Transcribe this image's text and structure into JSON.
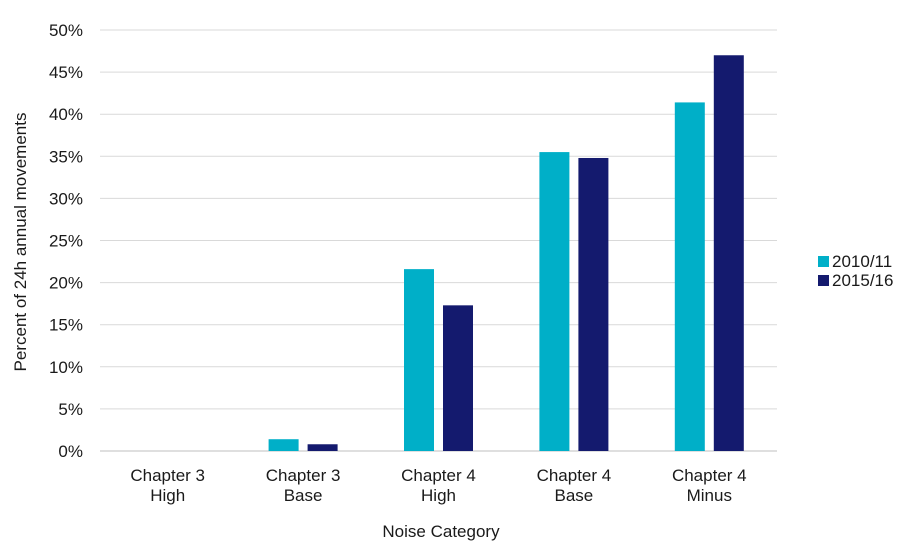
{
  "chart_data": {
    "type": "bar",
    "title": "",
    "xlabel": "Noise Category",
    "ylabel": "Percent of 24h annual movements",
    "categories": [
      [
        "Chapter 3",
        "High"
      ],
      [
        "Chapter 3",
        "Base"
      ],
      [
        "Chapter 4",
        "High"
      ],
      [
        "Chapter 4",
        "Base"
      ],
      [
        "Chapter 4",
        "Minus"
      ]
    ],
    "series": [
      {
        "name": "2010/11",
        "color": "#00afc8",
        "values": [
          0.0,
          1.4,
          21.6,
          35.5,
          41.4
        ]
      },
      {
        "name": "2015/16",
        "color": "#141a6e",
        "values": [
          0.0,
          0.8,
          17.3,
          34.8,
          47.0
        ]
      }
    ],
    "ylim": [
      0,
      50
    ],
    "yticks": [
      0,
      5,
      10,
      15,
      20,
      25,
      30,
      35,
      40,
      45,
      50
    ],
    "ytick_suffix": "%",
    "grid": true,
    "legend_position": "right"
  }
}
